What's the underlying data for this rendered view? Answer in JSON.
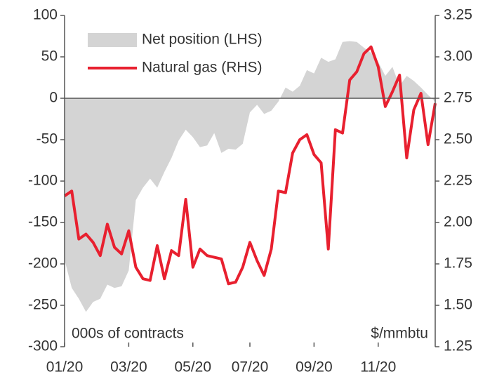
{
  "chart_data": {
    "type": "combo",
    "categories": [
      "01/20",
      null,
      null,
      null,
      null,
      null,
      null,
      null,
      null,
      "03/20",
      null,
      null,
      null,
      null,
      null,
      null,
      null,
      null,
      "05/20",
      null,
      null,
      null,
      null,
      null,
      null,
      null,
      "07/20",
      null,
      null,
      null,
      null,
      null,
      null,
      null,
      null,
      "09/20",
      null,
      null,
      null,
      null,
      null,
      null,
      null,
      null,
      "11/20",
      null,
      null,
      null,
      null,
      null,
      null,
      null,
      null
    ],
    "series": [
      {
        "name": "Net position (LHS)",
        "type": "area",
        "color": "#d4d4d4",
        "axis": "y",
        "values": [
          -195,
          -229,
          -242,
          -258,
          -246,
          -242,
          -225,
          -229,
          -227,
          -208,
          -123,
          -108,
          -97,
          -108,
          -89,
          -72,
          -51,
          -38,
          -47,
          -59,
          -57,
          -42,
          -66,
          -61,
          -62,
          -55,
          -17,
          -8,
          -19,
          -15,
          -4,
          13,
          8,
          15,
          34,
          30,
          49,
          44,
          47,
          68,
          69,
          68,
          61,
          55,
          44,
          27,
          38,
          15,
          27,
          21,
          13,
          4,
          -4
        ]
      },
      {
        "name": "Natural gas (RHS)",
        "type": "line",
        "color": "#e8202f",
        "axis": "y2",
        "values": [
          2.16,
          2.19,
          1.9,
          1.93,
          1.88,
          1.8,
          1.99,
          1.85,
          1.81,
          1.95,
          1.73,
          1.66,
          1.65,
          1.86,
          1.66,
          1.83,
          1.8,
          2.14,
          1.73,
          1.84,
          1.8,
          1.79,
          1.78,
          1.63,
          1.64,
          1.73,
          1.88,
          1.77,
          1.68,
          1.84,
          2.19,
          2.18,
          2.42,
          2.5,
          2.53,
          2.41,
          2.36,
          1.84,
          2.56,
          2.54,
          2.86,
          2.91,
          3.02,
          3.06,
          2.94,
          2.7,
          2.79,
          2.89,
          2.39,
          2.68,
          2.78,
          2.47,
          2.72
        ]
      }
    ],
    "ylim": [
      -300,
      100
    ],
    "yticks": [
      100,
      50,
      0,
      -50,
      -100,
      -150,
      -200,
      -250,
      -300
    ],
    "y2lim": [
      1.25,
      3.25
    ],
    "y2ticks": [
      3.25,
      {
        "value": 3,
        "label": "3.00"
      },
      2.75,
      {
        "value": 2.5,
        "label": "2.50"
      },
      2.25,
      {
        "value": 2,
        "label": "2.00"
      },
      1.75,
      {
        "value": 1.5,
        "label": "1.50"
      },
      1.25
    ],
    "ylabel": "000s of contracts",
    "y2label": "$/mmbtu",
    "legend": "top-left"
  }
}
